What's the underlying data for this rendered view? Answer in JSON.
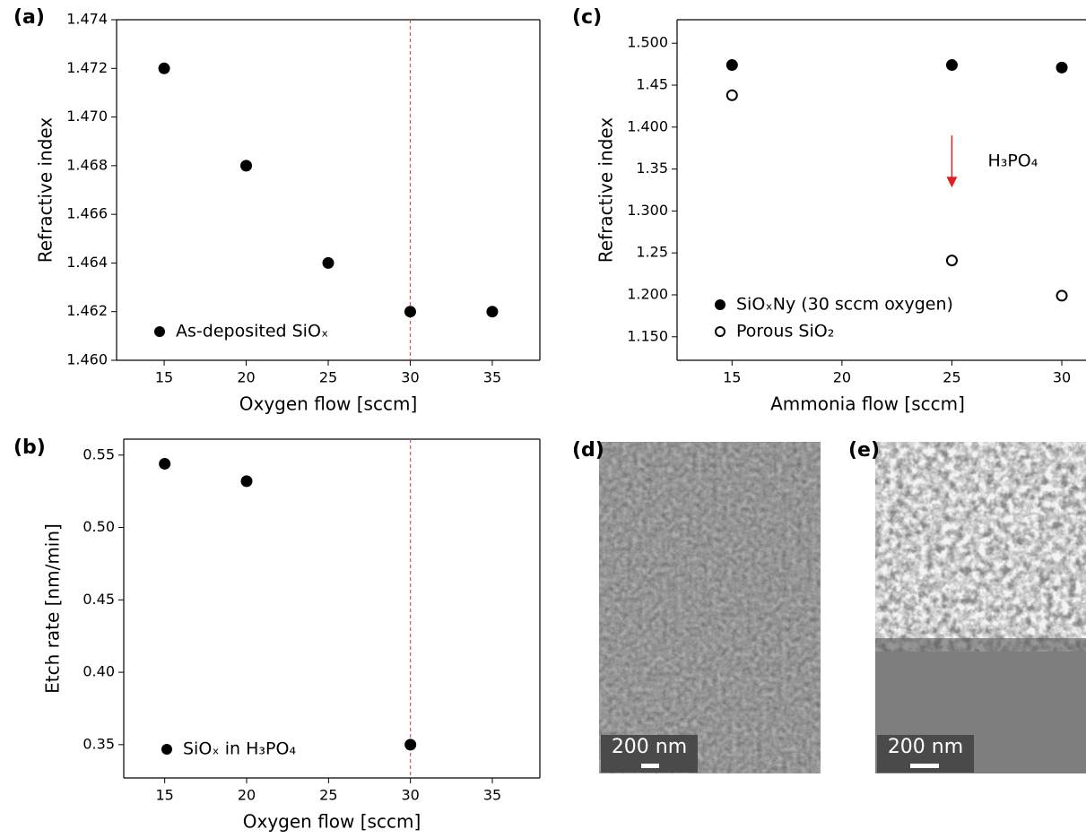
{
  "chart_data": [
    {
      "type": "scatter",
      "panel": "(a)",
      "x_label": "Oxygen flow [sccm]",
      "y_label": "Refractive index",
      "series": [
        {
          "name": "As-deposited SiOₓ",
          "color": "#000000",
          "marker": "filled",
          "x": [
            15,
            20,
            25,
            30,
            35
          ],
          "values": [
            1.472,
            1.468,
            1.464,
            1.462,
            1.462
          ]
        }
      ],
      "xlim": [
        12.1,
        37.9
      ],
      "xticks": [
        15,
        20,
        25,
        30,
        35
      ],
      "ylim": [
        1.46,
        1.474
      ],
      "yticks": [
        {
          "value": 1.46,
          "label": "1.460"
        },
        1.462,
        1.464,
        1.466,
        1.468,
        {
          "value": 1.47,
          "label": "1.470"
        },
        1.472,
        1.474
      ],
      "vline": 30,
      "vline_color": "#d9534f",
      "legend": "lower left"
    },
    {
      "type": "scatter",
      "panel": "(b)",
      "x_label": "Oxygen flow [sccm]",
      "y_label": "Etch rate [nm/min]",
      "series": [
        {
          "name": "SiOₓ in H₃PO₄",
          "color": "#000000",
          "marker": "filled",
          "x": [
            15,
            20,
            30
          ],
          "values": [
            0.544,
            0.532,
            0.35
          ]
        }
      ],
      "xlim": [
        12.5,
        37.9
      ],
      "xticks": [
        15,
        20,
        25,
        30,
        35
      ],
      "ylim": [
        0.327,
        0.561
      ],
      "yticks": [
        0.35,
        {
          "value": 0.4,
          "label": "0.40"
        },
        0.45,
        {
          "value": 0.5,
          "label": "0.50"
        },
        0.55
      ],
      "vline": 30,
      "vline_color": "#d9534f",
      "legend": "lower left"
    },
    {
      "type": "scatter",
      "panel": "(c)",
      "x_label": "Ammonia flow [sccm]",
      "y_label": "Refractive index",
      "series": [
        {
          "name": "SiOₓNy (30 sccm oxygen)",
          "color": "#000000",
          "marker": "filled",
          "x": [
            15,
            25,
            30
          ],
          "values": [
            1.474,
            1.474,
            1.471
          ]
        },
        {
          "name": "Porous SiO₂",
          "color": "#000000",
          "marker": "hollow",
          "x": [
            15,
            25,
            30
          ],
          "values": [
            1.438,
            1.241,
            1.199
          ]
        }
      ],
      "xlim": [
        12.5,
        31.1
      ],
      "xticks": [
        15,
        20,
        25,
        30
      ],
      "ylim": [
        1.122,
        1.528
      ],
      "yticks": [
        {
          "value": 1.15,
          "label": "1.150"
        },
        {
          "value": 1.2,
          "label": "1.200"
        },
        1.25,
        {
          "value": 1.3,
          "label": "1.300"
        },
        1.35,
        {
          "value": 1.4,
          "label": "1.400"
        },
        1.45,
        {
          "value": 1.5,
          "label": "1.500"
        }
      ],
      "annotation": {
        "text": "H₃PO₄",
        "x": 25,
        "y_from": 1.39,
        "y_to": 1.328,
        "color": "#e02020"
      },
      "legend": "lower left"
    }
  ],
  "sem_images": [
    {
      "panel": "(d)",
      "scale_bar": "200 nm"
    },
    {
      "panel": "(e)",
      "scale_bar": "200 nm"
    }
  ]
}
